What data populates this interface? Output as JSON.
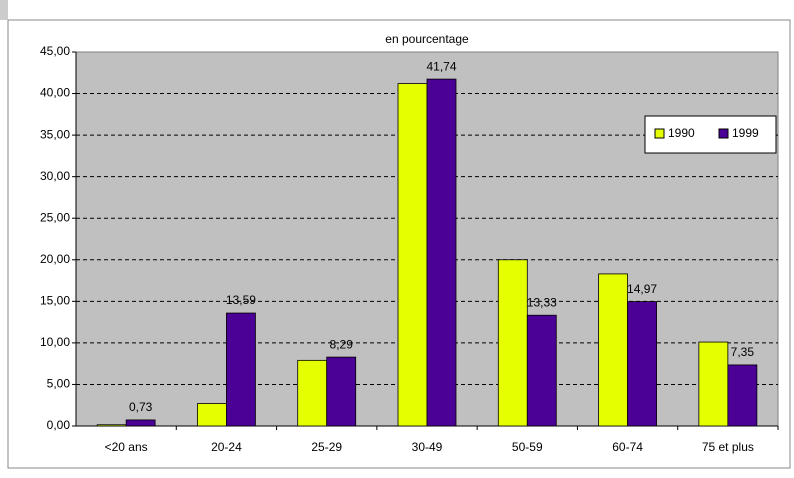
{
  "chart_data": {
    "type": "bar",
    "title": "en pourcentage",
    "categories": [
      "<20 ans",
      "20-24",
      "25-29",
      "30-49",
      "50-59",
      "60-74",
      "75 et plus"
    ],
    "series": [
      {
        "name": "1990",
        "color": "#e6ff00",
        "values": [
          0.15,
          2.7,
          7.9,
          41.2,
          20.0,
          18.3,
          10.1
        ]
      },
      {
        "name": "1999",
        "color": "#4b0096",
        "values": [
          0.73,
          13.59,
          8.29,
          41.74,
          13.33,
          14.97,
          7.35
        ],
        "value_labels": [
          "0,73",
          "13,59",
          "8,29",
          "41,74",
          "13,33",
          "14,97",
          "7,35"
        ]
      }
    ],
    "ylim": [
      0,
      45
    ],
    "yticks": [
      {
        "value": 0,
        "label": "0,00"
      },
      {
        "value": 5,
        "label": "5,00"
      },
      {
        "value": 10,
        "label": "10,00"
      },
      {
        "value": 15,
        "label": "15,00"
      },
      {
        "value": 20,
        "label": "20,00"
      },
      {
        "value": 25,
        "label": "25,00"
      },
      {
        "value": 30,
        "label": "30,00"
      },
      {
        "value": 35,
        "label": "35,00"
      },
      {
        "value": 40,
        "label": "40,00"
      },
      {
        "value": 45,
        "label": "45,00"
      }
    ],
    "grid": true,
    "legend": "upper right"
  }
}
